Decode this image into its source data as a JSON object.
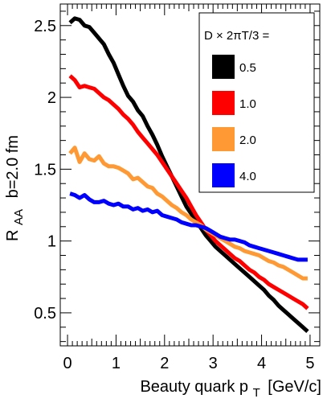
{
  "chart_data": {
    "type": "line",
    "xlabel": "Beauty quark p",
    "xlabel_sub": "T",
    "xlabel_unit": "[GeV/c]",
    "ylabel_main": "R",
    "ylabel_sub": "AA",
    "ylabel_extra": "b=2.0 fm",
    "xlim": [
      -0.15,
      5.2
    ],
    "ylim": [
      0.27,
      2.65
    ],
    "x_ticks": [
      "0",
      "1",
      "2",
      "3",
      "4",
      "5"
    ],
    "y_ticks": [
      "0.5",
      "1",
      "1.5",
      "2",
      "2.5"
    ],
    "grid": false,
    "legend_title": "D × 2πT/3 =",
    "legend_position": "top-right",
    "series": [
      {
        "name": "0.5",
        "color": "#000000",
        "x": [
          0.05,
          0.15,
          0.25,
          0.35,
          0.45,
          0.55,
          0.65,
          0.75,
          0.85,
          0.95,
          1.05,
          1.15,
          1.25,
          1.35,
          1.45,
          1.55,
          1.65,
          1.75,
          1.85,
          1.95,
          2.05,
          2.15,
          2.25,
          2.35,
          2.45,
          2.55,
          2.65,
          2.75,
          2.85,
          2.95,
          3.05,
          3.15,
          3.25,
          3.35,
          3.45,
          3.55,
          3.65,
          3.75,
          3.85,
          3.95,
          4.05,
          4.15,
          4.25,
          4.35,
          4.45,
          4.55,
          4.65,
          4.75,
          4.85,
          4.95
        ],
        "values": [
          2.52,
          2.55,
          2.54,
          2.5,
          2.49,
          2.45,
          2.41,
          2.37,
          2.3,
          2.24,
          2.16,
          2.08,
          2.01,
          1.97,
          1.91,
          1.87,
          1.8,
          1.74,
          1.67,
          1.59,
          1.52,
          1.45,
          1.38,
          1.31,
          1.24,
          1.19,
          1.14,
          1.09,
          1.04,
          1.0,
          0.96,
          0.93,
          0.9,
          0.87,
          0.84,
          0.81,
          0.78,
          0.75,
          0.72,
          0.69,
          0.66,
          0.62,
          0.59,
          0.55,
          0.52,
          0.49,
          0.46,
          0.43,
          0.4,
          0.37
        ]
      },
      {
        "name": "1.0",
        "color": "#ff0000",
        "x": [
          0.05,
          0.15,
          0.25,
          0.35,
          0.45,
          0.55,
          0.65,
          0.75,
          0.85,
          0.95,
          1.05,
          1.15,
          1.25,
          1.35,
          1.45,
          1.55,
          1.65,
          1.75,
          1.85,
          1.95,
          2.05,
          2.15,
          2.25,
          2.35,
          2.45,
          2.55,
          2.65,
          2.75,
          2.85,
          2.95,
          3.05,
          3.15,
          3.25,
          3.35,
          3.45,
          3.55,
          3.65,
          3.75,
          3.85,
          3.95,
          4.05,
          4.15,
          4.25,
          4.35,
          4.45,
          4.55,
          4.65,
          4.75,
          4.85,
          4.95
        ],
        "values": [
          2.15,
          2.12,
          2.07,
          2.08,
          2.07,
          2.06,
          2.03,
          2.0,
          1.98,
          1.95,
          1.92,
          1.88,
          1.85,
          1.81,
          1.76,
          1.72,
          1.68,
          1.64,
          1.6,
          1.55,
          1.5,
          1.45,
          1.4,
          1.35,
          1.3,
          1.24,
          1.18,
          1.13,
          1.08,
          1.04,
          1.0,
          0.97,
          0.94,
          0.91,
          0.88,
          0.86,
          0.83,
          0.8,
          0.78,
          0.75,
          0.73,
          0.7,
          0.68,
          0.66,
          0.64,
          0.62,
          0.6,
          0.58,
          0.56,
          0.53
        ]
      },
      {
        "name": "2.0",
        "color": "#ff9933",
        "x": [
          0.05,
          0.15,
          0.25,
          0.35,
          0.45,
          0.55,
          0.65,
          0.75,
          0.85,
          0.95,
          1.05,
          1.15,
          1.25,
          1.35,
          1.45,
          1.55,
          1.65,
          1.75,
          1.85,
          1.95,
          2.05,
          2.15,
          2.25,
          2.35,
          2.45,
          2.55,
          2.65,
          2.75,
          2.85,
          2.95,
          3.05,
          3.15,
          3.25,
          3.35,
          3.45,
          3.55,
          3.65,
          3.75,
          3.85,
          3.95,
          4.05,
          4.15,
          4.25,
          4.35,
          4.45,
          4.55,
          4.65,
          4.75,
          4.85,
          4.95
        ],
        "values": [
          1.61,
          1.65,
          1.55,
          1.61,
          1.57,
          1.56,
          1.59,
          1.54,
          1.52,
          1.52,
          1.51,
          1.49,
          1.47,
          1.43,
          1.44,
          1.41,
          1.38,
          1.37,
          1.33,
          1.31,
          1.28,
          1.25,
          1.23,
          1.2,
          1.18,
          1.15,
          1.13,
          1.11,
          1.08,
          1.06,
          1.04,
          1.02,
          1.0,
          0.98,
          0.96,
          0.95,
          0.93,
          0.92,
          0.91,
          0.9,
          0.88,
          0.86,
          0.85,
          0.83,
          0.82,
          0.8,
          0.78,
          0.76,
          0.74,
          0.74
        ]
      },
      {
        "name": "4.0",
        "color": "#0000ff",
        "x": [
          0.05,
          0.15,
          0.25,
          0.35,
          0.45,
          0.55,
          0.65,
          0.75,
          0.85,
          0.95,
          1.05,
          1.15,
          1.25,
          1.35,
          1.45,
          1.55,
          1.65,
          1.75,
          1.85,
          1.95,
          2.05,
          2.15,
          2.25,
          2.35,
          2.45,
          2.55,
          2.65,
          2.75,
          2.85,
          2.95,
          3.05,
          3.15,
          3.25,
          3.35,
          3.45,
          3.55,
          3.65,
          3.75,
          3.85,
          3.95,
          4.05,
          4.15,
          4.25,
          4.35,
          4.45,
          4.55,
          4.65,
          4.75,
          4.85,
          4.95
        ],
        "values": [
          1.33,
          1.32,
          1.3,
          1.32,
          1.29,
          1.27,
          1.27,
          1.28,
          1.26,
          1.25,
          1.26,
          1.24,
          1.24,
          1.22,
          1.23,
          1.21,
          1.22,
          1.2,
          1.21,
          1.18,
          1.17,
          1.16,
          1.15,
          1.13,
          1.12,
          1.11,
          1.11,
          1.1,
          1.09,
          1.07,
          1.05,
          1.03,
          1.02,
          1.01,
          1.01,
          1.0,
          0.99,
          0.97,
          0.96,
          0.95,
          0.94,
          0.93,
          0.92,
          0.91,
          0.9,
          0.89,
          0.88,
          0.87,
          0.87,
          0.87
        ]
      }
    ]
  }
}
